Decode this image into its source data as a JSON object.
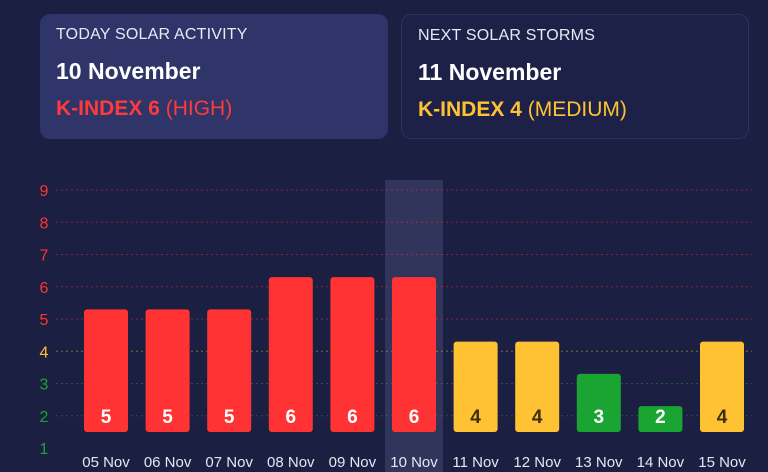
{
  "today_card": {
    "heading": "TODAY SOLAR ACTIVITY",
    "date": "10 November",
    "kindex_label": "K-INDEX 6",
    "level": "(HIGH)",
    "color": "#ff3a3a"
  },
  "next_card": {
    "heading": "NEXT SOLAR STORMS",
    "date": "11 November",
    "kindex_label": "K-INDEX 4",
    "level": "(MEDIUM)",
    "color": "#ffc233"
  },
  "colors": {
    "high": "#ff3333",
    "medium": "#ffc233",
    "low": "#1aa532",
    "highlight": "#3a3f66"
  },
  "chart_data": {
    "type": "bar",
    "categories": [
      "05 Nov",
      "06 Nov",
      "07 Nov",
      "08 Nov",
      "09 Nov",
      "10 Nov",
      "11 Nov",
      "12 Nov",
      "13 Nov",
      "14 Nov",
      "15 Nov"
    ],
    "values": [
      5,
      5,
      5,
      6,
      6,
      6,
      4,
      4,
      3,
      2,
      4
    ],
    "y_ticks": [
      1,
      2,
      3,
      4,
      5,
      6,
      7,
      8,
      9
    ],
    "ylim": [
      1,
      9
    ],
    "highlighted_category": "10 Nov",
    "grid": true
  }
}
